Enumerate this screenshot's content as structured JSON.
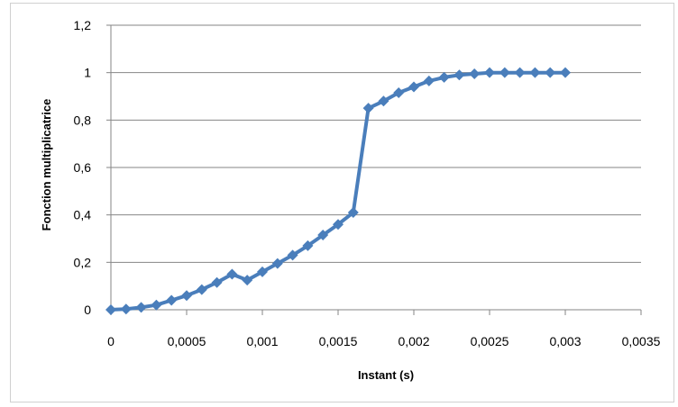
{
  "chart_data": {
    "type": "line",
    "xlabel": "Instant (s)",
    "ylabel": "Fonction multiplicatrice",
    "xlim": [
      0,
      0.0035
    ],
    "ylim": [
      0,
      1.2
    ],
    "x_ticks": [
      0,
      0.0005,
      0.001,
      0.0015,
      0.002,
      0.0025,
      0.003,
      0.0035
    ],
    "x_tick_labels": [
      "0",
      "0,0005",
      "0,001",
      "0,0015",
      "0,002",
      "0,0025",
      "0,003",
      "0,0035"
    ],
    "y_ticks": [
      0,
      0.2,
      0.4,
      0.6,
      0.8,
      1.0,
      1.2
    ],
    "y_tick_labels": [
      "0",
      "0,2",
      "0,4",
      "0,6",
      "0,8",
      "1",
      "1,2"
    ],
    "grid": "horizontal",
    "legend": "none",
    "color": "#4a7ebb",
    "marker": "diamond",
    "series": [
      {
        "x": [
          0,
          0.0001,
          0.0002,
          0.0003,
          0.0004,
          0.0005,
          0.0006,
          0.0007,
          0.0008,
          0.0009,
          0.001,
          0.0011,
          0.0012,
          0.0013,
          0.0014,
          0.0015,
          0.0016,
          0.0017,
          0.0018,
          0.0019,
          0.002,
          0.0021,
          0.0022,
          0.0023,
          0.0024,
          0.0025,
          0.0026,
          0.0027,
          0.0028,
          0.0029,
          0.003
        ],
        "y": [
          0,
          0.003,
          0.01,
          0.02,
          0.04,
          0.06,
          0.085,
          0.115,
          0.15,
          0.125,
          0.16,
          0.195,
          0.23,
          0.27,
          0.315,
          0.36,
          0.41,
          0.85,
          0.88,
          0.915,
          0.94,
          0.965,
          0.98,
          0.99,
          0.995,
          1.0,
          1.0,
          1.0,
          1.0,
          1.0,
          1.0
        ]
      }
    ]
  }
}
